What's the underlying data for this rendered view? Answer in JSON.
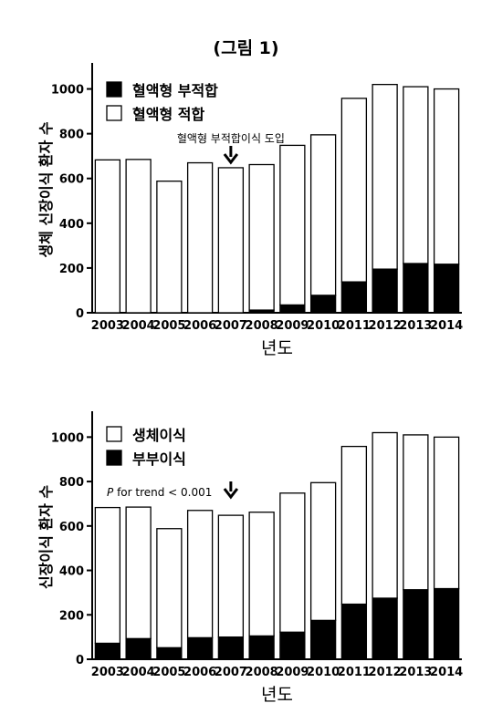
{
  "figure_title": "(그림 1)",
  "chart_data": [
    {
      "type": "bar",
      "stacked": true,
      "categories": [
        "2003",
        "2004",
        "2005",
        "2006",
        "2007",
        "2008",
        "2009",
        "2010",
        "2011",
        "2012",
        "2013",
        "2014"
      ],
      "series": [
        {
          "name": "혈액형 부적합",
          "color": "#000000",
          "values": [
            0,
            0,
            0,
            0,
            0,
            12,
            35,
            78,
            138,
            195,
            220,
            217
          ]
        },
        {
          "name": "혈액형 적합",
          "color": "#ffffff",
          "values": [
            683,
            685,
            588,
            670,
            648,
            650,
            713,
            717,
            820,
            825,
            790,
            783
          ]
        }
      ],
      "ylim": [
        0,
        1100
      ],
      "yticks": [
        0,
        200,
        400,
        600,
        800,
        1000
      ],
      "ylabel": "생체 신장이식 환자 수",
      "xlabel": "년도",
      "legend_placement": "top-left",
      "annotation": {
        "text": "혈액형 부적합이식 도입",
        "category": "2007",
        "arrow": "down"
      }
    },
    {
      "type": "bar",
      "stacked": true,
      "categories": [
        "2003",
        "2004",
        "2005",
        "2006",
        "2007",
        "2008",
        "2009",
        "2010",
        "2011",
        "2012",
        "2013",
        "2014"
      ],
      "series": [
        {
          "name": "부부이식",
          "color": "#000000",
          "values": [
            72,
            93,
            52,
            97,
            100,
            105,
            122,
            175,
            248,
            275,
            313,
            318
          ]
        },
        {
          "name": "생체이식",
          "color": "#ffffff",
          "values": [
            611,
            592,
            536,
            573,
            548,
            557,
            626,
            620,
            710,
            745,
            697,
            682
          ]
        }
      ],
      "ylim": [
        0,
        1100
      ],
      "yticks": [
        0,
        200,
        400,
        600,
        800,
        1000
      ],
      "ylabel": "신장이식 환자 수",
      "xlabel": "년도",
      "legend_placement": "top-left",
      "annotation": {
        "text_italic": "P",
        "text": " for trend < 0.001",
        "category": "2007",
        "arrow": "down"
      }
    }
  ]
}
